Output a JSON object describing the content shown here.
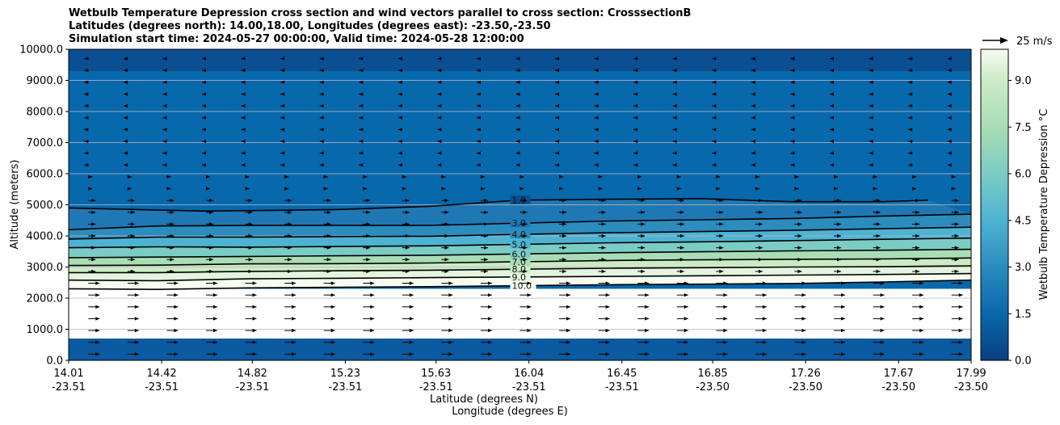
{
  "chart_data": {
    "type": "contour-cross-section",
    "title_lines": [
      "Wetbulb Temperature Depression cross section and wind vectors parallel to cross section: CrosssectionB",
      "Latitudes (degrees north): 14.00,18.00, Longitudes (degrees east): -23.50,-23.50",
      "Simulation start time: 2024-05-27 00:00:00, Valid time: 2024-05-28 12:00:00"
    ],
    "ylabel": "Altitude (meters)",
    "xlabel_lat": "Latitude (degrees N)",
    "xlabel_lon": "Longitude (degrees E)",
    "ylim": [
      0,
      10000
    ],
    "y_ticks": [
      "0.0",
      "1000.0",
      "2000.0",
      "3000.0",
      "4000.0",
      "5000.0",
      "6000.0",
      "7000.0",
      "8000.0",
      "9000.0",
      "10000.0"
    ],
    "y_tick_values": [
      0,
      1000,
      2000,
      3000,
      4000,
      5000,
      6000,
      7000,
      8000,
      9000,
      10000
    ],
    "x_ticks": [
      {
        "lat": "14.01",
        "lon": "-23.51"
      },
      {
        "lat": "14.42",
        "lon": "-23.51"
      },
      {
        "lat": "14.82",
        "lon": "-23.51"
      },
      {
        "lat": "15.23",
        "lon": "-23.51"
      },
      {
        "lat": "15.63",
        "lon": "-23.51"
      },
      {
        "lat": "16.04",
        "lon": "-23.51"
      },
      {
        "lat": "16.45",
        "lon": "-23.51"
      },
      {
        "lat": "16.85",
        "lon": "-23.50"
      },
      {
        "lat": "17.26",
        "lon": "-23.50"
      },
      {
        "lat": "17.67",
        "lon": "-23.50"
      },
      {
        "lat": "17.99",
        "lon": "-23.50"
      }
    ],
    "x_tick_values": [
      14.01,
      14.42,
      14.82,
      15.23,
      15.63,
      16.04,
      16.45,
      16.85,
      17.26,
      17.67,
      17.99
    ],
    "xlim": [
      14.01,
      17.99
    ],
    "colorbar": {
      "label": "Wetbulb Temperature Depression °C",
      "range": [
        0,
        10
      ],
      "ticks": [
        "0.0",
        "1.5",
        "3.0",
        "4.5",
        "6.0",
        "7.5",
        "9.0"
      ],
      "tick_values": [
        0,
        1.5,
        3,
        4.5,
        6,
        7.5,
        9
      ],
      "colormap": "GnBu_r"
    },
    "quiver_key": {
      "label": "25 m/s",
      "speed": 25
    },
    "contour_lines": [
      {
        "level": 10,
        "label": "10.0",
        "x": [
          14.01,
          14.4,
          14.8,
          15.2,
          15.6,
          16.0,
          16.4,
          16.8,
          17.2,
          17.6,
          17.99
        ],
        "y": [
          2300,
          2280,
          2330,
          2350,
          2370,
          2400,
          2430,
          2450,
          2470,
          2520,
          2580
        ]
      },
      {
        "level": 9,
        "label": "9.0",
        "x": [
          14.01,
          14.4,
          14.8,
          15.2,
          15.6,
          16.0,
          16.4,
          16.8,
          17.2,
          17.6,
          17.99
        ],
        "y": [
          2580,
          2560,
          2620,
          2640,
          2660,
          2680,
          2700,
          2720,
          2740,
          2760,
          2790
        ]
      },
      {
        "level": 8,
        "label": "8.0",
        "x": [
          14.01,
          14.4,
          14.8,
          15.2,
          15.6,
          16.0,
          16.4,
          16.8,
          17.2,
          17.6,
          17.99
        ],
        "y": [
          2820,
          2820,
          2860,
          2880,
          2900,
          2930,
          2960,
          2980,
          3000,
          3010,
          3040
        ]
      },
      {
        "level": 7,
        "label": "7.0",
        "x": [
          14.01,
          14.4,
          14.8,
          15.2,
          15.6,
          16.0,
          16.4,
          16.8,
          17.2,
          17.6,
          17.99
        ],
        "y": [
          3050,
          3060,
          3100,
          3110,
          3130,
          3170,
          3210,
          3230,
          3250,
          3260,
          3290
        ]
      },
      {
        "level": 6,
        "label": "6.0",
        "x": [
          14.01,
          14.4,
          14.8,
          15.2,
          15.6,
          16.0,
          16.4,
          16.8,
          17.2,
          17.6,
          17.99
        ],
        "y": [
          3300,
          3320,
          3340,
          3360,
          3380,
          3420,
          3460,
          3490,
          3520,
          3540,
          3570
        ]
      },
      {
        "level": 5,
        "label": "5.0",
        "x": [
          14.01,
          14.4,
          14.8,
          15.2,
          15.6,
          16.0,
          16.4,
          16.8,
          17.2,
          17.6,
          17.99
        ],
        "y": [
          3620,
          3650,
          3640,
          3660,
          3680,
          3730,
          3780,
          3810,
          3850,
          3890,
          3930
        ]
      },
      {
        "level": 4,
        "label": "4.0",
        "x": [
          14.01,
          14.4,
          14.8,
          15.2,
          15.6,
          16.0,
          16.4,
          16.8,
          17.2,
          17.6,
          17.99
        ],
        "y": [
          3900,
          3960,
          3960,
          3980,
          3990,
          4050,
          4100,
          4140,
          4180,
          4230,
          4280
        ]
      },
      {
        "level": 3,
        "label": "3.0",
        "x": [
          14.01,
          14.4,
          14.8,
          15.2,
          15.6,
          16.0,
          16.4,
          16.8,
          17.2,
          17.6,
          17.99
        ],
        "y": [
          4200,
          4320,
          4340,
          4340,
          4340,
          4410,
          4480,
          4520,
          4560,
          4640,
          4700
        ]
      },
      {
        "level": 1,
        "label": "1.0",
        "x": [
          14.01,
          14.3,
          14.6,
          14.9,
          15.2,
          15.6,
          16.0,
          16.4,
          16.8,
          17.2,
          17.6,
          17.8
        ],
        "y": [
          4900,
          4850,
          4800,
          4820,
          4850,
          4950,
          5150,
          5180,
          5200,
          5100,
          5100,
          5150
        ]
      }
    ]
  }
}
